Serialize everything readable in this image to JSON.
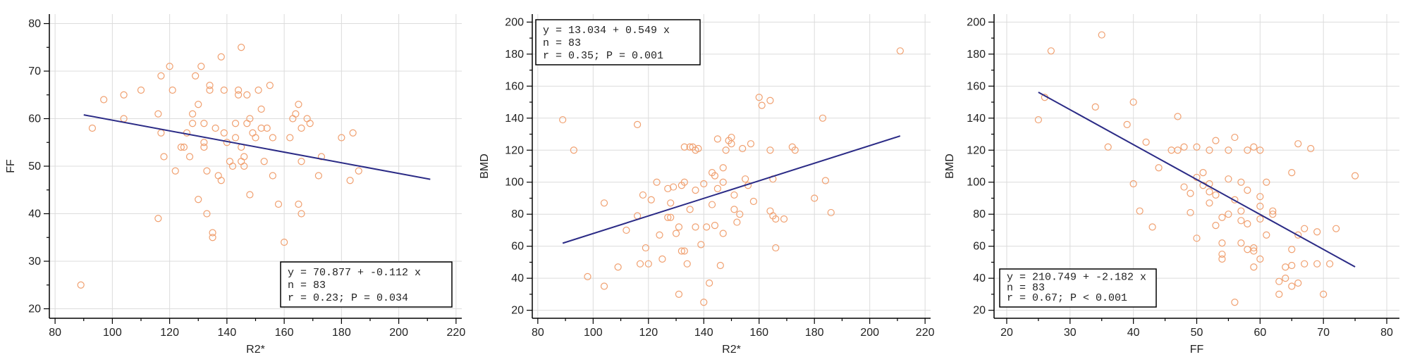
{
  "colors": {
    "point": "#f0a070",
    "line": "#2b2b86",
    "grid": "#dcdcdc"
  },
  "chart_data": [
    {
      "type": "scatter",
      "xlabel": "R2*",
      "ylabel": "FF",
      "xlim": [
        78,
        222
      ],
      "ylim": [
        18,
        82
      ],
      "xticks": [
        80,
        100,
        120,
        140,
        160,
        180,
        200,
        220
      ],
      "yticks": [
        20,
        30,
        40,
        50,
        60,
        70,
        80
      ],
      "grid": true,
      "fit": {
        "intercept": 70.877,
        "slope": -0.112,
        "x_range": [
          90,
          211
        ]
      },
      "stats_box": {
        "position": "bottom-right",
        "lines": [
          "y = 70.877  +  -0.112  x",
          "n = 83",
          "r = 0.23; P = 0.034"
        ]
      },
      "points": [
        [
          89,
          25
        ],
        [
          93,
          58
        ],
        [
          97,
          64
        ],
        [
          104,
          65
        ],
        [
          104,
          60
        ],
        [
          110,
          66
        ],
        [
          116,
          61
        ],
        [
          117,
          69
        ],
        [
          117,
          57
        ],
        [
          116,
          39
        ],
        [
          118,
          52
        ],
        [
          120,
          71
        ],
        [
          121,
          66
        ],
        [
          122,
          49
        ],
        [
          124,
          54
        ],
        [
          125,
          54
        ],
        [
          126,
          57
        ],
        [
          127,
          52
        ],
        [
          128,
          61
        ],
        [
          128,
          59
        ],
        [
          129,
          69
        ],
        [
          130,
          63
        ],
        [
          130,
          43
        ],
        [
          131,
          71
        ],
        [
          132,
          59
        ],
        [
          132,
          55
        ],
        [
          133,
          40
        ],
        [
          133,
          49
        ],
        [
          134,
          66
        ],
        [
          134,
          67
        ],
        [
          135,
          36
        ],
        [
          135,
          35
        ],
        [
          136,
          58
        ],
        [
          137,
          48
        ],
        [
          138,
          47
        ],
        [
          138,
          73
        ],
        [
          139,
          66
        ],
        [
          139,
          57
        ],
        [
          140,
          55
        ],
        [
          141,
          51
        ],
        [
          142,
          50
        ],
        [
          143,
          59
        ],
        [
          144,
          66
        ],
        [
          144,
          65
        ],
        [
          145,
          54
        ],
        [
          145,
          75
        ],
        [
          145,
          51
        ],
        [
          146,
          52
        ],
        [
          146,
          50
        ],
        [
          147,
          59
        ],
        [
          147,
          65
        ],
        [
          148,
          44
        ],
        [
          148,
          60
        ],
        [
          149,
          57
        ],
        [
          150,
          56
        ],
        [
          151,
          66
        ],
        [
          152,
          62
        ],
        [
          152,
          58
        ],
        [
          153,
          51
        ],
        [
          154,
          58
        ],
        [
          155,
          67
        ],
        [
          156,
          56
        ],
        [
          156,
          48
        ],
        [
          158,
          42
        ],
        [
          160,
          34
        ],
        [
          162,
          56
        ],
        [
          163,
          60
        ],
        [
          164,
          61
        ],
        [
          165,
          63
        ],
        [
          165,
          42
        ],
        [
          166,
          40
        ],
        [
          166,
          58
        ],
        [
          166,
          51
        ],
        [
          168,
          60
        ],
        [
          169,
          59
        ],
        [
          172,
          48
        ],
        [
          173,
          52
        ],
        [
          180,
          56
        ],
        [
          183,
          47
        ],
        [
          184,
          57
        ],
        [
          186,
          49
        ],
        [
          143,
          56
        ],
        [
          132,
          54
        ]
      ]
    },
    {
      "type": "scatter",
      "xlabel": "R2*",
      "ylabel": "BMD",
      "xlim": [
        78,
        222
      ],
      "ylim": [
        15,
        205
      ],
      "xticks": [
        80,
        100,
        120,
        140,
        160,
        180,
        200,
        220
      ],
      "yticks": [
        20,
        40,
        60,
        80,
        100,
        120,
        140,
        160,
        180,
        200
      ],
      "grid": true,
      "fit": {
        "intercept": 13.034,
        "slope": 0.549,
        "x_range": [
          89,
          211
        ]
      },
      "stats_box": {
        "position": "top-left",
        "lines": [
          "y = 13.034  +  0.549  x",
          "n = 83",
          "r = 0.35; P = 0.001"
        ]
      },
      "points": [
        [
          89,
          139
        ],
        [
          93,
          120
        ],
        [
          98,
          41
        ],
        [
          104,
          35
        ],
        [
          104,
          87
        ],
        [
          109,
          47
        ],
        [
          116,
          79
        ],
        [
          116,
          136
        ],
        [
          117,
          49
        ],
        [
          118,
          92
        ],
        [
          119,
          59
        ],
        [
          120,
          49
        ],
        [
          121,
          89
        ],
        [
          124,
          67
        ],
        [
          125,
          52
        ],
        [
          127,
          78
        ],
        [
          127,
          96
        ],
        [
          128,
          87
        ],
        [
          128,
          78
        ],
        [
          129,
          97
        ],
        [
          130,
          68
        ],
        [
          131,
          30
        ],
        [
          131,
          72
        ],
        [
          132,
          57
        ],
        [
          132,
          98
        ],
        [
          133,
          57
        ],
        [
          133,
          100
        ],
        [
          133,
          122
        ],
        [
          134,
          49
        ],
        [
          135,
          83
        ],
        [
          135,
          122
        ],
        [
          136,
          122
        ],
        [
          137,
          72
        ],
        [
          137,
          120
        ],
        [
          138,
          121
        ],
        [
          139,
          61
        ],
        [
          140,
          25
        ],
        [
          140,
          99
        ],
        [
          141,
          72
        ],
        [
          142,
          37
        ],
        [
          143,
          86
        ],
        [
          143,
          106
        ],
        [
          144,
          73
        ],
        [
          144,
          104
        ],
        [
          145,
          96
        ],
        [
          145,
          127
        ],
        [
          146,
          48
        ],
        [
          147,
          68
        ],
        [
          147,
          100
        ],
        [
          147,
          109
        ],
        [
          148,
          120
        ],
        [
          149,
          126
        ],
        [
          150,
          124
        ],
        [
          150,
          128
        ],
        [
          151,
          83
        ],
        [
          151,
          92
        ],
        [
          152,
          75
        ],
        [
          153,
          80
        ],
        [
          154,
          121
        ],
        [
          155,
          102
        ],
        [
          156,
          98
        ],
        [
          157,
          124
        ],
        [
          160,
          153
        ],
        [
          161,
          148
        ],
        [
          164,
          120
        ],
        [
          164,
          151
        ],
        [
          164,
          82
        ],
        [
          165,
          79
        ],
        [
          165,
          102
        ],
        [
          166,
          77
        ],
        [
          166,
          59
        ],
        [
          169,
          77
        ],
        [
          172,
          122
        ],
        [
          173,
          120
        ],
        [
          180,
          90
        ],
        [
          183,
          140
        ],
        [
          184,
          101
        ],
        [
          186,
          81
        ],
        [
          211,
          182
        ],
        [
          123,
          100
        ],
        [
          137,
          95
        ],
        [
          158,
          88
        ],
        [
          112,
          70
        ]
      ]
    },
    {
      "type": "scatter",
      "xlabel": "FF",
      "ylabel": "BMD",
      "xlim": [
        18,
        82
      ],
      "ylim": [
        15,
        205
      ],
      "xticks": [
        20,
        30,
        40,
        50,
        60,
        70,
        80
      ],
      "yticks": [
        20,
        40,
        60,
        80,
        100,
        120,
        140,
        160,
        180,
        200
      ],
      "grid": true,
      "fit": {
        "intercept": 210.749,
        "slope": -2.182,
        "x_range": [
          25,
          75
        ]
      },
      "stats_box": {
        "position": "bottom-left",
        "lines": [
          "y = 210.749  +  -2.182  x",
          "n = 83",
          "r = 0.67; P < 0.001"
        ]
      },
      "points": [
        [
          25,
          139
        ],
        [
          26,
          153
        ],
        [
          27,
          182
        ],
        [
          35,
          192
        ],
        [
          34,
          147
        ],
        [
          36,
          122
        ],
        [
          39,
          136
        ],
        [
          40,
          150
        ],
        [
          40,
          99
        ],
        [
          41,
          82
        ],
        [
          42,
          125
        ],
        [
          43,
          72
        ],
        [
          44,
          109
        ],
        [
          47,
          141
        ],
        [
          47,
          120
        ],
        [
          48,
          97
        ],
        [
          48,
          122
        ],
        [
          49,
          93
        ],
        [
          49,
          81
        ],
        [
          50,
          122
        ],
        [
          50,
          103
        ],
        [
          50,
          65
        ],
        [
          51,
          106
        ],
        [
          51,
          98
        ],
        [
          52,
          87
        ],
        [
          52,
          120
        ],
        [
          52,
          94
        ],
        [
          53,
          92
        ],
        [
          53,
          126
        ],
        [
          53,
          73
        ],
        [
          54,
          78
        ],
        [
          54,
          55
        ],
        [
          54,
          52
        ],
        [
          55,
          102
        ],
        [
          55,
          80
        ],
        [
          56,
          128
        ],
        [
          56,
          89
        ],
        [
          57,
          100
        ],
        [
          57,
          76
        ],
        [
          57,
          82
        ],
        [
          58,
          120
        ],
        [
          58,
          95
        ],
        [
          58,
          74
        ],
        [
          59,
          57
        ],
        [
          59,
          122
        ],
        [
          59,
          59
        ],
        [
          59,
          47
        ],
        [
          60,
          85
        ],
        [
          60,
          91
        ],
        [
          60,
          77
        ],
        [
          60,
          120
        ],
        [
          61,
          67
        ],
        [
          62,
          82
        ],
        [
          62,
          80
        ],
        [
          63,
          30
        ],
        [
          64,
          40
        ],
        [
          64,
          47
        ],
        [
          65,
          106
        ],
        [
          65,
          48
        ],
        [
          65,
          35
        ],
        [
          65,
          58
        ],
        [
          66,
          37
        ],
        [
          66,
          124
        ],
        [
          66,
          67
        ],
        [
          67,
          49
        ],
        [
          67,
          71
        ],
        [
          68,
          121
        ],
        [
          69,
          69
        ],
        [
          69,
          49
        ],
        [
          70,
          30
        ],
        [
          71,
          49
        ],
        [
          72,
          71
        ],
        [
          75,
          104
        ],
        [
          56,
          25
        ],
        [
          57,
          62
        ],
        [
          54,
          62
        ],
        [
          52,
          99
        ],
        [
          58,
          58
        ],
        [
          63,
          38
        ],
        [
          60,
          52
        ],
        [
          46,
          120
        ],
        [
          61,
          100
        ],
        [
          55,
          120
        ]
      ]
    }
  ]
}
